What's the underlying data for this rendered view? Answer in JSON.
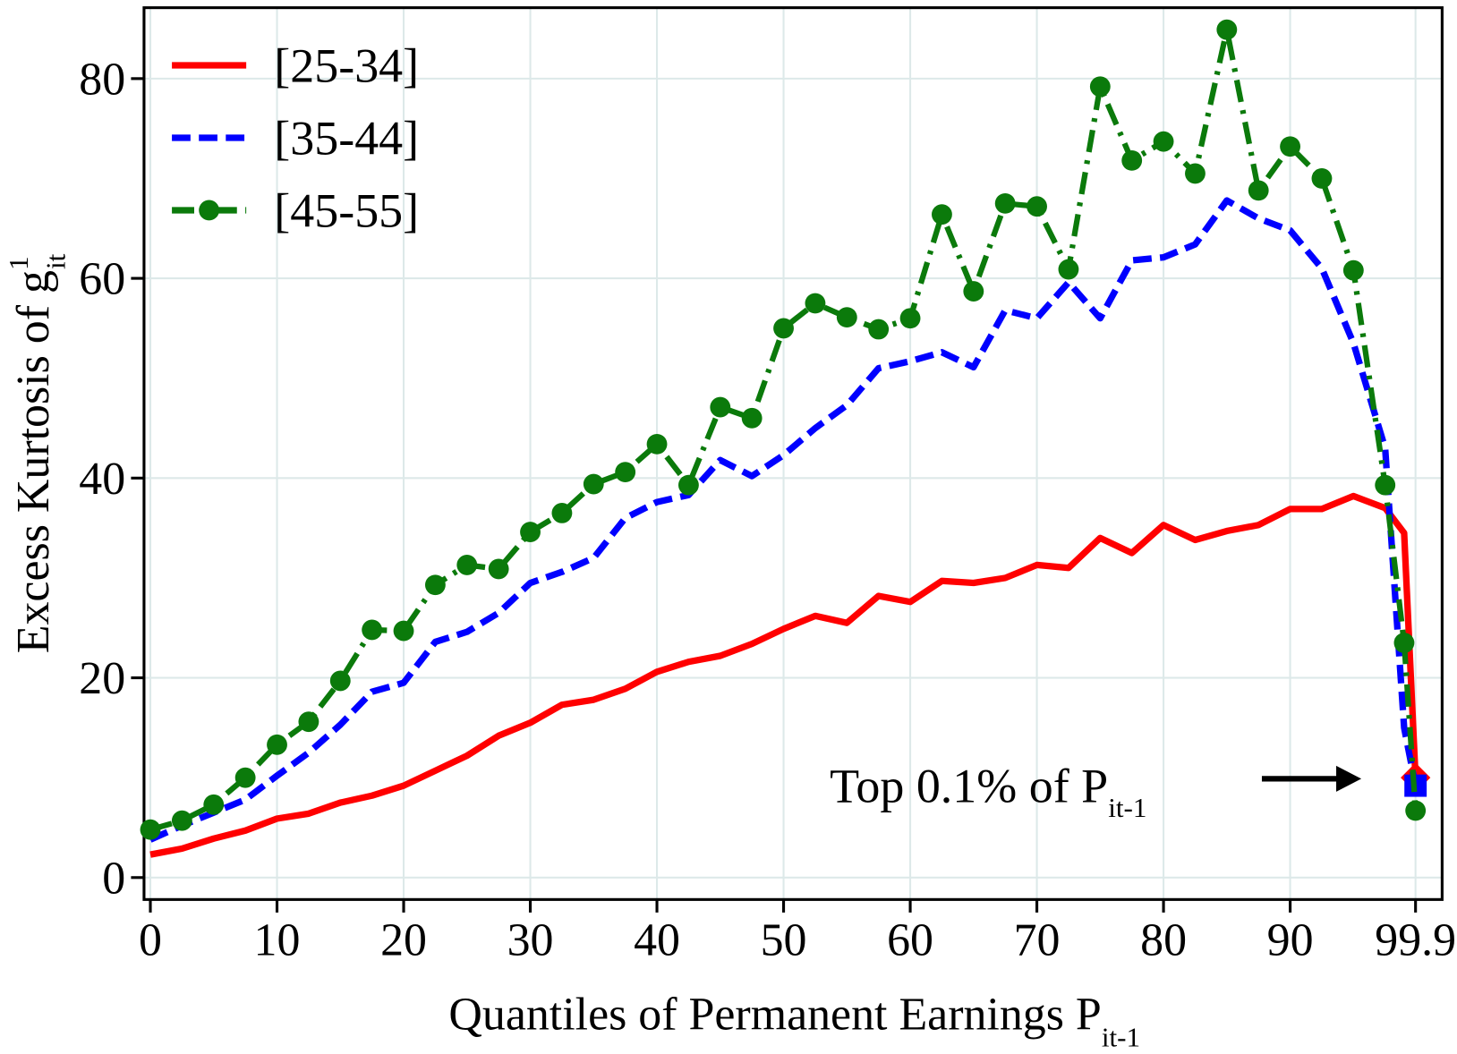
{
  "chart_data": {
    "type": "line",
    "x_label": {
      "text": "Quantiles of Permanent Earnings P",
      "sub": "it-1"
    },
    "y_label": {
      "text": "Excess Kurtosis of g",
      "sup": "1",
      "sub": "it"
    },
    "annotation": {
      "text": "Top 0.1% of P",
      "sub": "it-1"
    },
    "x": [
      0,
      2.5,
      5,
      7.5,
      10,
      12.5,
      15,
      17.5,
      20,
      22.5,
      25,
      27.5,
      30,
      32.5,
      35,
      37.5,
      40,
      42.5,
      45,
      47.5,
      50,
      52.5,
      55,
      57.5,
      60,
      62.5,
      65,
      67.5,
      70,
      72.5,
      75,
      77.5,
      80,
      82.5,
      85,
      87.5,
      90,
      92.5,
      95,
      97.5,
      99,
      99.9
    ],
    "series": [
      {
        "name": "[25-34]",
        "color": "#ff0000",
        "dash": "solid",
        "end_marker": "diamond",
        "values": [
          2.3,
          2.9,
          3.9,
          4.7,
          5.9,
          6.4,
          7.5,
          8.2,
          9.2,
          10.7,
          12.2,
          14.2,
          15.5,
          17.3,
          17.8,
          18.9,
          20.6,
          21.6,
          22.2,
          23.4,
          24.9,
          26.2,
          25.5,
          28.2,
          27.6,
          29.7,
          29.5,
          30.0,
          31.3,
          31.0,
          34.0,
          32.5,
          35.3,
          33.8,
          34.7,
          35.3,
          36.9,
          36.9,
          38.2,
          37.0,
          34.5,
          10.0
        ]
      },
      {
        "name": "[35-44]",
        "color": "#0000ff",
        "dash": "dashed",
        "end_marker": "square",
        "values": [
          3.8,
          5.2,
          6.5,
          7.8,
          10.2,
          12.5,
          15.3,
          18.6,
          19.5,
          23.6,
          24.6,
          26.5,
          29.5,
          30.6,
          32.0,
          36.0,
          37.6,
          38.3,
          41.8,
          40.2,
          42.3,
          45.0,
          47.3,
          51.0,
          51.7,
          52.6,
          51.1,
          56.8,
          56.0,
          59.6,
          56.0,
          61.8,
          62.1,
          63.4,
          67.8,
          66.0,
          64.8,
          61.0,
          53.5,
          43.0,
          15.0,
          9.2
        ]
      },
      {
        "name": "[45-55]",
        "color": "#0b7a0b",
        "dash": "dashdot",
        "marker": "circle",
        "values": [
          4.8,
          5.7,
          7.3,
          10.0,
          13.3,
          15.6,
          19.7,
          24.8,
          24.7,
          29.3,
          31.3,
          30.9,
          34.6,
          36.5,
          39.4,
          40.6,
          43.4,
          39.3,
          47.1,
          46.0,
          55.0,
          57.5,
          56.1,
          54.9,
          56.0,
          66.4,
          58.7,
          67.5,
          67.2,
          60.9,
          79.2,
          71.8,
          73.7,
          70.5,
          84.9,
          68.8,
          73.2,
          70.0,
          60.8,
          39.3,
          23.5,
          6.7
        ]
      }
    ],
    "xlim": [
      -0.5,
      102
    ],
    "ylim": [
      -2.2,
      87.1
    ],
    "xticks": [
      0,
      10,
      20,
      30,
      40,
      50,
      60,
      70,
      80,
      90,
      99.9
    ],
    "yticks": [
      0,
      20,
      40,
      60,
      80
    ],
    "grid": true,
    "legend": "upper left"
  }
}
